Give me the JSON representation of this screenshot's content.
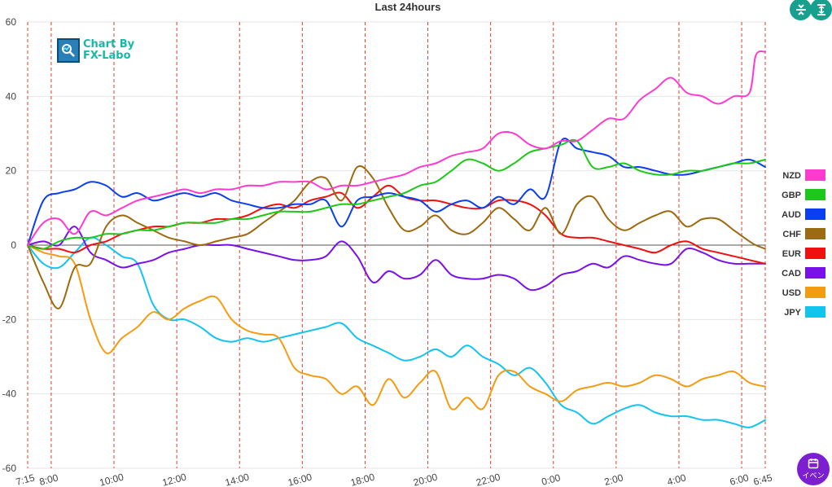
{
  "chart_data": {
    "type": "line",
    "title": "Last 24hours",
    "xlabel": "",
    "ylabel": "",
    "ylim": [
      -60,
      60
    ],
    "yticks": [
      60,
      40,
      20,
      0,
      -20,
      -40,
      -60
    ],
    "x_range_hours": [
      0,
      23.5
    ],
    "x_ticks": [
      {
        "label": "7:15",
        "h": 0
      },
      {
        "label": "8:00",
        "h": 0.75
      },
      {
        "label": "10:00",
        "h": 2.75
      },
      {
        "label": "12:00",
        "h": 4.75
      },
      {
        "label": "14:00",
        "h": 6.75
      },
      {
        "label": "16:00",
        "h": 8.75
      },
      {
        "label": "18:00",
        "h": 10.75
      },
      {
        "label": "20:00",
        "h": 12.75
      },
      {
        "label": "22:00",
        "h": 14.75
      },
      {
        "label": "0:00",
        "h": 16.75
      },
      {
        "label": "2:00",
        "h": 18.75
      },
      {
        "label": "4:00",
        "h": 20.75
      },
      {
        "label": "6:00",
        "h": 22.75
      },
      {
        "label": "6:45",
        "h": 23.5
      }
    ],
    "legend_position": "right",
    "series": [
      {
        "name": "NZD",
        "color": "#ff3ad0",
        "x": [
          0,
          0.5,
          1,
          1.5,
          2,
          2.5,
          3,
          3.5,
          4,
          4.5,
          5,
          5.5,
          6,
          6.5,
          7,
          7.5,
          8,
          8.5,
          9,
          9.5,
          10,
          10.5,
          11,
          11.5,
          12,
          12.5,
          13,
          13.5,
          14,
          14.5,
          15,
          15.5,
          16,
          16.5,
          17,
          17.5,
          18,
          18.5,
          19,
          19.5,
          20,
          20.5,
          21,
          21.5,
          22,
          22.5,
          23,
          23.2,
          23.5
        ],
        "values": [
          0,
          6,
          7,
          3,
          9,
          8,
          10,
          12,
          13,
          14,
          15,
          14,
          15,
          15,
          16,
          16,
          17,
          17,
          17,
          15,
          16,
          16,
          17,
          18,
          19,
          21,
          22,
          24,
          25,
          26,
          30,
          30,
          27,
          26,
          28,
          28,
          31,
          34,
          34,
          39,
          42,
          45,
          41,
          40,
          38,
          40,
          41,
          51,
          52
        ]
      },
      {
        "name": "GBP",
        "color": "#1ec81a",
        "x": [
          0,
          0.5,
          1,
          1.5,
          2,
          2.5,
          3,
          3.5,
          4,
          4.5,
          5,
          5.5,
          6,
          6.5,
          7,
          7.5,
          8,
          8.5,
          9,
          9.5,
          10,
          10.5,
          11,
          11.5,
          12,
          12.5,
          13,
          13.5,
          14,
          14.5,
          15,
          15.5,
          16,
          16.5,
          17,
          17.5,
          18,
          18.5,
          19,
          19.5,
          20,
          20.5,
          21,
          21.5,
          22,
          22.5,
          23,
          23.5
        ],
        "values": [
          0,
          -1,
          1,
          2,
          2,
          3,
          3,
          4,
          4,
          5,
          6,
          6,
          6,
          7,
          7,
          8,
          9,
          9,
          9,
          10,
          11,
          11,
          12,
          13,
          14,
          16,
          17,
          20,
          23,
          22,
          20,
          22,
          25,
          26,
          27,
          28,
          21,
          21,
          22,
          20,
          19,
          19,
          20,
          20,
          21,
          22,
          22,
          23
        ]
      },
      {
        "name": "AUD",
        "color": "#0a3ef0",
        "x": [
          0,
          0.5,
          1,
          1.5,
          2,
          2.5,
          3,
          3.5,
          4,
          4.5,
          5,
          5.5,
          6,
          6.5,
          7,
          7.5,
          8,
          8.5,
          9,
          9.5,
          10,
          10.5,
          11,
          11.5,
          12,
          12.5,
          13,
          13.5,
          14,
          14.5,
          15,
          15.5,
          16,
          16.5,
          17,
          17.5,
          18,
          18.5,
          19,
          19.5,
          20,
          20.5,
          21,
          21.5,
          22,
          22.5,
          23,
          23.5
        ],
        "values": [
          0,
          12,
          14,
          15,
          17,
          16,
          13,
          14,
          12,
          13,
          14,
          13,
          14,
          12,
          11,
          10,
          10,
          11,
          11,
          12,
          5,
          12,
          13,
          14,
          13,
          12,
          9,
          11,
          12,
          10,
          13,
          11,
          15,
          13,
          28,
          26,
          25,
          24,
          21,
          21,
          20,
          19,
          19,
          20,
          21,
          22,
          23,
          21
        ]
      },
      {
        "name": "CHF",
        "color": "#9c6a10",
        "x": [
          0,
          0.5,
          1,
          1.5,
          2,
          2.5,
          3,
          3.5,
          4,
          4.5,
          5,
          5.5,
          6,
          6.5,
          7,
          7.5,
          8,
          8.5,
          9,
          9.5,
          10,
          10.5,
          11,
          11.5,
          12,
          12.5,
          13,
          13.5,
          14,
          14.5,
          15,
          15.5,
          16,
          16.5,
          17,
          17.5,
          18,
          18.5,
          19,
          19.5,
          20,
          20.5,
          21,
          21.5,
          22,
          22.5,
          23,
          23.2,
          23.5
        ],
        "values": [
          0,
          -10,
          -17,
          -6,
          -5,
          5,
          8,
          6,
          4,
          2,
          1,
          0,
          1,
          2,
          3,
          6,
          9,
          12,
          17,
          18,
          12,
          21,
          18,
          10,
          4,
          5,
          8,
          4,
          3,
          6,
          10,
          7,
          4,
          10,
          3,
          11,
          13,
          7,
          4,
          6,
          8,
          9,
          5,
          7,
          7,
          4,
          1,
          0,
          -1
        ]
      },
      {
        "name": "EUR",
        "color": "#f01010",
        "x": [
          0,
          0.5,
          1,
          1.5,
          2,
          2.5,
          3,
          3.5,
          4,
          4.5,
          5,
          5.5,
          6,
          6.5,
          7,
          7.5,
          8,
          8.5,
          9,
          9.5,
          10,
          10.5,
          11,
          11.5,
          12,
          12.5,
          13,
          13.5,
          14,
          14.5,
          15,
          15.5,
          16,
          16.5,
          17,
          17.5,
          18,
          18.5,
          19,
          19.5,
          20,
          20.5,
          21,
          21.5,
          22,
          22.5,
          23,
          23.5
        ],
        "values": [
          0,
          -1,
          -1,
          -2,
          0,
          1,
          3,
          4,
          5,
          5,
          6,
          6,
          7,
          7,
          8,
          10,
          11,
          10,
          12,
          13,
          14,
          10,
          13,
          16,
          13,
          12,
          12,
          11,
          10,
          10,
          12,
          12,
          11,
          8,
          3,
          2,
          2,
          1,
          0,
          -1,
          -2,
          0,
          1,
          -1,
          -2,
          -3,
          -4,
          -5
        ]
      },
      {
        "name": "CAD",
        "color": "#7a10e8",
        "x": [
          0,
          0.5,
          1,
          1.5,
          2,
          2.5,
          3,
          3.5,
          4,
          4.5,
          5,
          5.5,
          6,
          6.5,
          7,
          7.5,
          8,
          8.5,
          9,
          9.5,
          10,
          10.5,
          11,
          11.5,
          12,
          12.5,
          13,
          13.5,
          14,
          14.5,
          15,
          15.5,
          16,
          16.5,
          17,
          17.5,
          18,
          18.5,
          19,
          19.5,
          20,
          20.5,
          21,
          21.5,
          22,
          22.5,
          23,
          23.5
        ],
        "values": [
          0,
          1,
          0,
          5,
          -2,
          -4,
          -6,
          -5,
          -4,
          -2,
          -1,
          0,
          0,
          0,
          -1,
          -2,
          -3,
          -4,
          -4,
          -3,
          1,
          -3,
          -10,
          -7,
          -9,
          -8,
          -4,
          -8,
          -9,
          -9,
          -8,
          -9,
          -12,
          -11,
          -8,
          -7,
          -5,
          -6,
          -3,
          -4,
          -5,
          -5,
          -1,
          -2,
          -4,
          -5,
          -5,
          -5
        ]
      },
      {
        "name": "USD",
        "color": "#f39c12",
        "x": [
          0,
          0.5,
          1,
          1.5,
          2,
          2.5,
          3,
          3.5,
          4,
          4.5,
          5,
          5.5,
          6,
          6.5,
          7,
          7.5,
          8,
          8.5,
          9,
          9.5,
          10,
          10.5,
          11,
          11.5,
          12,
          12.5,
          13,
          13.5,
          14,
          14.5,
          15,
          15.5,
          16,
          16.5,
          17,
          17.5,
          18,
          18.5,
          19,
          19.5,
          20,
          20.5,
          21,
          21.5,
          22,
          22.5,
          23,
          23.5
        ],
        "values": [
          0,
          -2,
          -3,
          -5,
          -20,
          -29,
          -25,
          -22,
          -18,
          -20,
          -17,
          -15,
          -14,
          -20,
          -23,
          -24,
          -25,
          -33,
          -35,
          -36,
          -40,
          -38,
          -43,
          -36,
          -41,
          -37,
          -34,
          -44,
          -41,
          -44,
          -35,
          -34,
          -38,
          -40,
          -42,
          -39,
          -38,
          -37,
          -38,
          -37,
          -35,
          -36,
          -38,
          -36,
          -35,
          -34,
          -37,
          -38
        ]
      },
      {
        "name": "JPY",
        "color": "#12c4ee",
        "x": [
          0,
          0.5,
          1,
          1.5,
          2,
          2.5,
          3,
          3.5,
          4,
          4.5,
          5,
          5.5,
          6,
          6.5,
          7,
          7.5,
          8,
          8.5,
          9,
          9.5,
          10,
          10.5,
          11,
          11.5,
          12,
          12.5,
          13,
          13.5,
          14,
          14.5,
          15,
          15.5,
          16,
          16.5,
          17,
          17.5,
          18,
          18.5,
          19,
          19.5,
          20,
          20.5,
          21,
          21.5,
          22,
          22.5,
          23,
          23.5
        ],
        "values": [
          0,
          -5,
          -6,
          -2,
          2,
          0,
          -3,
          -5,
          -16,
          -20,
          -20,
          -22,
          -25,
          -26,
          -25,
          -26,
          -25,
          -24,
          -23,
          -22,
          -21,
          -25,
          -27,
          -29,
          -31,
          -30,
          -28,
          -30,
          -27,
          -30,
          -32,
          -35,
          -33,
          -37,
          -43,
          -45,
          -48,
          -46,
          -44,
          -43,
          -45,
          -46,
          -46,
          -47,
          -47,
          -48,
          -49,
          -47
        ]
      }
    ]
  },
  "watermark": {
    "line1": "Chart By",
    "line2": "FX-Labo"
  },
  "buttons": {
    "event_label": "イベン"
  },
  "icons": {
    "top_left_button": "collapse-icon",
    "top_right_button": "expand-icon",
    "event_button": "calendar-icon"
  }
}
